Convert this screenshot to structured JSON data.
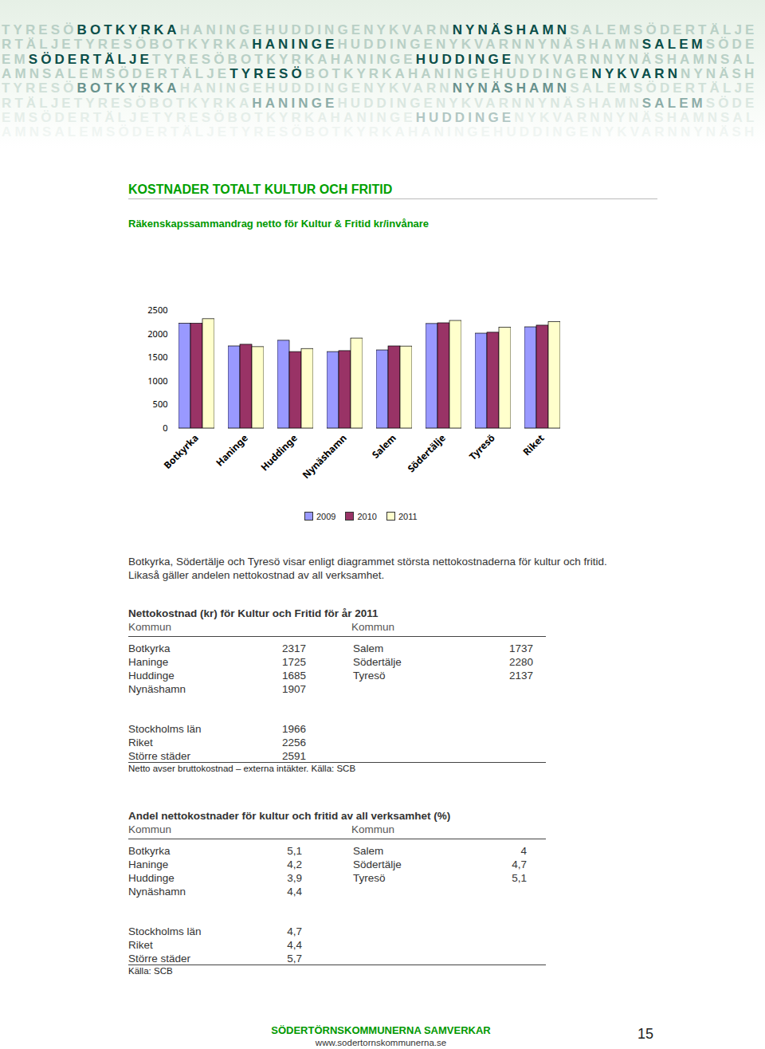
{
  "banner": [
    [
      {
        "text": "TYRESÖ",
        "highlight": false
      },
      {
        "text": "BOTKYRKA",
        "highlight": true
      },
      {
        "text": "HANINGEHUDDINGENYKVARN",
        "highlight": false
      },
      {
        "text": "NYNÄSHAMN",
        "highlight": true
      },
      {
        "text": "SALEMSÖDERTÄLJE",
        "highlight": false
      }
    ],
    [
      {
        "text": "RTÄLJETYRESÖBOTKYRKA",
        "highlight": false
      },
      {
        "text": "HANINGE",
        "highlight": true
      },
      {
        "text": "HUDDINGENYKVARNNYNÄSHAMN",
        "highlight": false
      },
      {
        "text": "SALEM",
        "highlight": true
      },
      {
        "text": "SÖDE",
        "highlight": false
      }
    ],
    [
      {
        "text": "EM",
        "highlight": false
      },
      {
        "text": "SÖDERTÄLJE",
        "highlight": true
      },
      {
        "text": "TYRESÖBOTKYRKAHANINGE",
        "highlight": false
      },
      {
        "text": "HUDDINGE",
        "highlight": true
      },
      {
        "text": "NYKVARNNYNÄSHAMNSAL",
        "highlight": false
      }
    ],
    [
      {
        "text": "AMNSALEMSÖDERTÄLJE",
        "highlight": false
      },
      {
        "text": "TYRESÖ",
        "highlight": true
      },
      {
        "text": "BOTKYRKAHANINGEHUDDINGE",
        "highlight": false
      },
      {
        "text": "NYKVARN",
        "highlight": true
      },
      {
        "text": "NYNÄSH",
        "highlight": false
      }
    ],
    [
      {
        "text": "TYRESÖ",
        "highlight": false
      },
      {
        "text": "BOTKYRKA",
        "highlight": true
      },
      {
        "text": "HANINGEHUDDINGENYKVARN",
        "highlight": false
      },
      {
        "text": "NYNÄSHAMN",
        "highlight": true
      },
      {
        "text": "SALEMSÖDERTÄLJE",
        "highlight": false
      }
    ],
    [
      {
        "text": "RTÄLJETYRESÖBOTKYRKA",
        "highlight": false
      },
      {
        "text": "HANINGE",
        "highlight": true
      },
      {
        "text": "HUDDINGENYKVARNNYNÄSHAMN",
        "highlight": false
      },
      {
        "text": "SALEM",
        "highlight": true
      },
      {
        "text": "SÖDE",
        "highlight": false
      }
    ],
    [
      {
        "text": "EMSÖDERTÄLJETYRESÖBOTKYRKAHANINGE",
        "highlight": false
      },
      {
        "text": "HUDDINGE",
        "highlight": true
      },
      {
        "text": "NYKVARNNYNÄSHAMNSAL",
        "highlight": false
      }
    ],
    [
      {
        "text": "AMNSALEMSÖDERTÄLJETYRESÖBOTKYRKAHANINGEHUDDINGENYKVARNNYNÄSH",
        "highlight": false
      }
    ]
  ],
  "chart_data": {
    "type": "bar",
    "title": "KOSTNADER TOTALT KULTUR OCH FRITID",
    "subtitle": "Räkenskapssammandrag netto för Kultur & Fritid kr/invånare",
    "categories": [
      "Botkyrka",
      "Haninge",
      "Huddinge",
      "Nynäshamn",
      "Salem",
      "Södertälje",
      "Tyresö",
      "Riket"
    ],
    "series": [
      {
        "name": "2009",
        "color": "#9999ff",
        "values": [
          2220,
          1740,
          1860,
          1620,
          1655,
          2215,
          2010,
          2145
        ]
      },
      {
        "name": "2010",
        "color": "#993366",
        "values": [
          2220,
          1775,
          1620,
          1640,
          1740,
          2230,
          2030,
          2180
        ]
      },
      {
        "name": "2011",
        "color": "#ffffcc",
        "values": [
          2317,
          1725,
          1685,
          1907,
          1737,
          2280,
          2137,
          2256
        ]
      }
    ],
    "ylim": [
      0,
      2500
    ],
    "yticks": [
      0,
      500,
      1000,
      1500,
      2000,
      2500
    ],
    "legend": "bottom",
    "grid": false
  },
  "paragraph": [
    "Botkyrka, Södertälje och Tyresö visar enligt diagrammet största nettokostnaderna för kultur och fritid.",
    "Likaså gäller andelen nettokostnad av all verksamhet."
  ],
  "table1": {
    "title": "Nettokostnad (kr) för Kultur och Fritid för år 2011",
    "header": [
      "Kommun",
      "Kommun"
    ],
    "left": [
      [
        "Botkyrka",
        "2317"
      ],
      [
        "Haninge",
        "1725"
      ],
      [
        "Huddinge",
        "1685"
      ],
      [
        "Nynäshamn",
        "1907"
      ]
    ],
    "right": [
      [
        "Salem",
        "1737"
      ],
      [
        "Södertälje",
        "2280"
      ],
      [
        "Tyresö",
        "2137"
      ]
    ],
    "regions": [
      [
        "Stockholms län",
        "1966"
      ],
      [
        "Riket",
        "2256"
      ],
      [
        "Större städer",
        "2591"
      ]
    ],
    "note": "Netto avser bruttokostnad – externa intäkter. Källa: SCB"
  },
  "table2": {
    "title": "Andel nettokostnader för kultur och fritid av all verksamhet (%)",
    "header": [
      "Kommun",
      "Kommun"
    ],
    "left": [
      [
        "Botkyrka",
        "5,1"
      ],
      [
        "Haninge",
        "4,2"
      ],
      [
        "Huddinge",
        "3,9"
      ],
      [
        "Nynäshamn",
        "4,4"
      ]
    ],
    "right": [
      [
        "Salem",
        "4"
      ],
      [
        "Södertälje",
        "4,7"
      ],
      [
        "Tyresö",
        "5,1"
      ]
    ],
    "regions": [
      [
        "Stockholms län",
        "4,7"
      ],
      [
        "Riket",
        "4,4"
      ],
      [
        "Större städer",
        "5,7"
      ]
    ],
    "note": "Källa: SCB"
  },
  "footer": {
    "organisation": "SÖDERTÖRNSKOMMUNERNA SAMVERKAR",
    "url": "www.sodertornskommunerna.se",
    "page": "15"
  }
}
